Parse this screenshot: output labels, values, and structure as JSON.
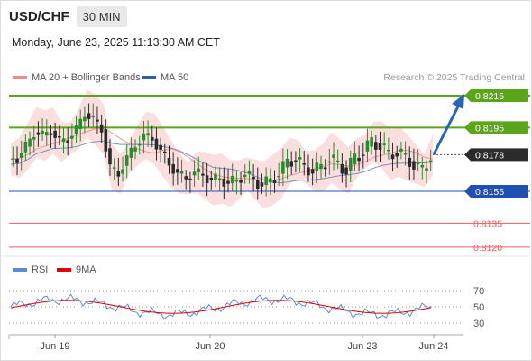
{
  "header": {
    "symbol": "USD/CHF",
    "timeframe": "30 MIN"
  },
  "timestamp": "Monday, June 23, 2025 11:13:30 AM CET",
  "legend": [
    {
      "label": "MA 20 + Bollinger Bands",
      "color": "#ef8a8a"
    },
    {
      "label": "MA 50",
      "color": "#2d5fa8"
    }
  ],
  "rsi_legend": [
    {
      "label": "RSI",
      "color": "#5b8bd8"
    },
    {
      "label": "9MA",
      "color": "#e00000"
    }
  ],
  "credit": "Research © 2025 Trading Central",
  "colors": {
    "up": "#2e8a2e",
    "down": "#2a2a2a",
    "resistance": "#5aa51a",
    "support": "#1f4fb3",
    "target": "#e46060",
    "arrow": "#2a64b5",
    "bands": "#f9d4d4"
  },
  "chart_data": {
    "type": "candlestick",
    "price_levels": [
      {
        "value": 0.8215,
        "label": "0.8215",
        "kind": "resistance"
      },
      {
        "value": 0.8195,
        "label": "0.8195",
        "kind": "resistance"
      },
      {
        "value": 0.8178,
        "label": "0.8178",
        "kind": "last"
      },
      {
        "value": 0.8155,
        "label": "0.8155",
        "kind": "support"
      },
      {
        "value": 0.8135,
        "label": "0.8135",
        "kind": "target"
      },
      {
        "value": 0.812,
        "label": "0.8120",
        "kind": "target"
      }
    ],
    "x_tick_labels": [
      "Jun 19",
      "Jun 20",
      "Jun 23",
      "Jun 24"
    ],
    "rsi_levels": [
      "70",
      "50",
      "30"
    ],
    "price_series_approx": [
      0.8175,
      0.8176,
      0.8183,
      0.8192,
      0.819,
      0.8193,
      0.8186,
      0.8188,
      0.8194,
      0.8204,
      0.82,
      0.8194,
      0.817,
      0.8166,
      0.8176,
      0.8184,
      0.819,
      0.8188,
      0.818,
      0.8172,
      0.8166,
      0.8163,
      0.8167,
      0.8165,
      0.8162,
      0.8163,
      0.816,
      0.8162,
      0.8166,
      0.8162,
      0.8159,
      0.8162,
      0.8166,
      0.8174,
      0.8175,
      0.817,
      0.8168,
      0.817,
      0.8176,
      0.8172,
      0.8168,
      0.8176,
      0.818,
      0.8186,
      0.8184,
      0.8178,
      0.818,
      0.8176,
      0.8172,
      0.8168,
      0.8178
    ]
  }
}
